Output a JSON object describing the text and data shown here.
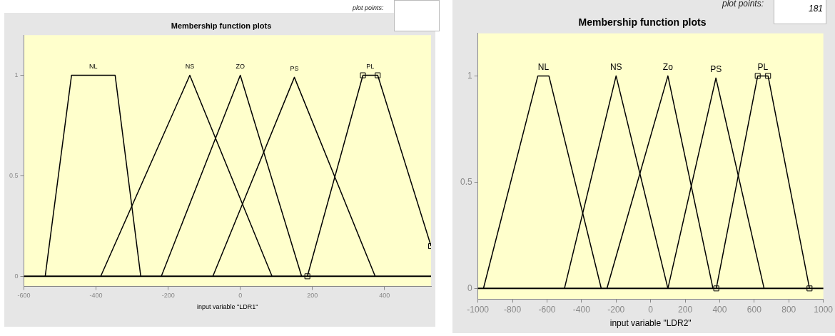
{
  "chart_data": [
    {
      "type": "line",
      "title": "Membership function plots",
      "xlabel": "input variable \"LDR1\"",
      "xlim": [
        -600,
        529
      ],
      "ylim": [
        -0.05,
        1.2
      ],
      "xticks": [
        -600,
        -400,
        -200,
        0,
        200,
        400
      ],
      "yticks": [
        0,
        0.5,
        1
      ],
      "grid": false,
      "legend": false,
      "marker": "none",
      "ref_lines": [
        {
          "axis": "y",
          "value": 0,
          "color": "#000000"
        }
      ],
      "annotations": [
        "plot points:"
      ],
      "series": [
        {
          "name": "NL",
          "color": "#000000",
          "x": [
            -541,
            -468,
            -347,
            -276
          ],
          "values": [
            0,
            1,
            1,
            0
          ]
        },
        {
          "name": "NS",
          "color": "#000000",
          "x": [
            -387,
            -140,
            88
          ],
          "values": [
            0,
            1,
            0
          ]
        },
        {
          "name": "ZO",
          "color": "#000000",
          "x": [
            -219,
            0,
            170
          ],
          "values": [
            0,
            1,
            0
          ]
        },
        {
          "name": "PS",
          "color": "#000000",
          "x": [
            -76,
            150,
            374
          ],
          "values": [
            0,
            0.99,
            0
          ]
        },
        {
          "name": "PL",
          "color": "#000000",
          "marker": "square",
          "x": [
            186,
            340,
            381,
            529
          ],
          "values": [
            0,
            1,
            1,
            0.15
          ]
        }
      ]
    },
    {
      "type": "line",
      "title": "Membership function plots",
      "xlabel": "input variable \"LDR2\"",
      "xlim": [
        -1000,
        1000
      ],
      "ylim": [
        -0.05,
        1.2
      ],
      "xticks": [
        -1000,
        -800,
        -600,
        -400,
        -200,
        0,
        200,
        400,
        600,
        800,
        1000
      ],
      "yticks": [
        0,
        0.5,
        1
      ],
      "grid": false,
      "legend": false,
      "marker": "none",
      "ref_lines": [
        {
          "axis": "y",
          "value": 0,
          "color": "#000000"
        }
      ],
      "annotations": [
        "plot points:",
        "181"
      ],
      "series": [
        {
          "name": "NL",
          "color": "#000000",
          "x": [
            -968,
            -653,
            -589,
            -286
          ],
          "values": [
            0,
            1,
            1,
            0
          ]
        },
        {
          "name": "NS",
          "color": "#000000",
          "x": [
            -499,
            -200,
            100
          ],
          "values": [
            0,
            1,
            0
          ]
        },
        {
          "name": "Zo",
          "color": "#000000",
          "x": [
            -253,
            100,
            361
          ],
          "values": [
            0,
            1,
            0
          ]
        },
        {
          "name": "PS",
          "color": "#000000",
          "x": [
            100,
            378,
            657
          ],
          "values": [
            0,
            0.99,
            0
          ]
        },
        {
          "name": "PL",
          "color": "#000000",
          "marker": "square",
          "x": [
            380,
            620,
            680,
            920
          ],
          "values": [
            0,
            1,
            1,
            0
          ]
        }
      ]
    }
  ]
}
